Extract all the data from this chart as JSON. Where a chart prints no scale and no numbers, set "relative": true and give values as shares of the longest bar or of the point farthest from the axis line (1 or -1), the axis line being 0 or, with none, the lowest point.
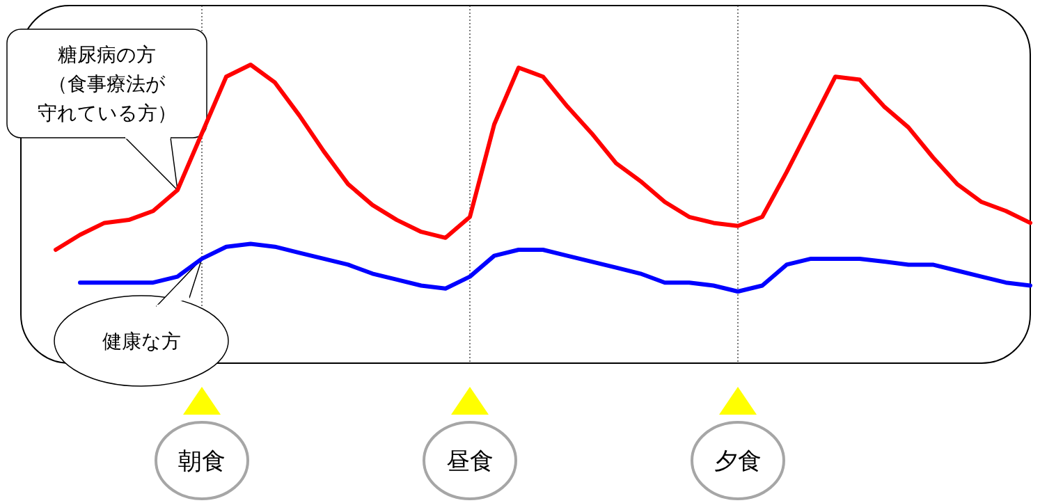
{
  "chart_data": {
    "type": "line",
    "relative": true,
    "grid": "x",
    "line_style": "solid",
    "categories": [
      null,
      null,
      null,
      null,
      null,
      null,
      "朝食",
      null,
      null,
      null,
      null,
      null,
      null,
      null,
      null,
      null,
      null,
      "昼食",
      null,
      null,
      null,
      null,
      null,
      null,
      null,
      null,
      null,
      null,
      "夕食",
      null,
      null,
      null,
      null,
      null,
      null,
      null,
      null,
      null,
      null,
      null,
      null
    ],
    "series": [
      {
        "name": "糖尿病の方（食事療法が守れている方）",
        "color": "#ff0000",
        "values": [
          0.38,
          0.43,
          0.47,
          0.48,
          0.51,
          0.58,
          0.77,
          0.96,
          1.0,
          0.94,
          0.83,
          0.71,
          0.6,
          0.53,
          0.48,
          0.44,
          0.42,
          0.49,
          0.8,
          0.99,
          0.96,
          0.86,
          0.77,
          0.67,
          0.61,
          0.54,
          0.49,
          0.47,
          0.46,
          0.49,
          0.64,
          0.8,
          0.96,
          0.95,
          0.86,
          0.79,
          0.69,
          0.6,
          0.54,
          0.51,
          0.47
        ]
      },
      {
        "name": "健康な方",
        "color": "#0000ff",
        "values": [
          null,
          0.27,
          0.27,
          0.27,
          0.27,
          0.29,
          0.35,
          0.39,
          0.4,
          0.39,
          0.37,
          0.35,
          0.33,
          0.3,
          0.28,
          0.26,
          0.25,
          0.29,
          0.36,
          0.38,
          0.38,
          0.36,
          0.34,
          0.32,
          0.3,
          0.27,
          0.27,
          0.26,
          0.24,
          0.26,
          0.33,
          0.35,
          0.35,
          0.35,
          0.34,
          0.33,
          0.33,
          0.31,
          0.29,
          0.27,
          0.26
        ]
      }
    ]
  }
}
